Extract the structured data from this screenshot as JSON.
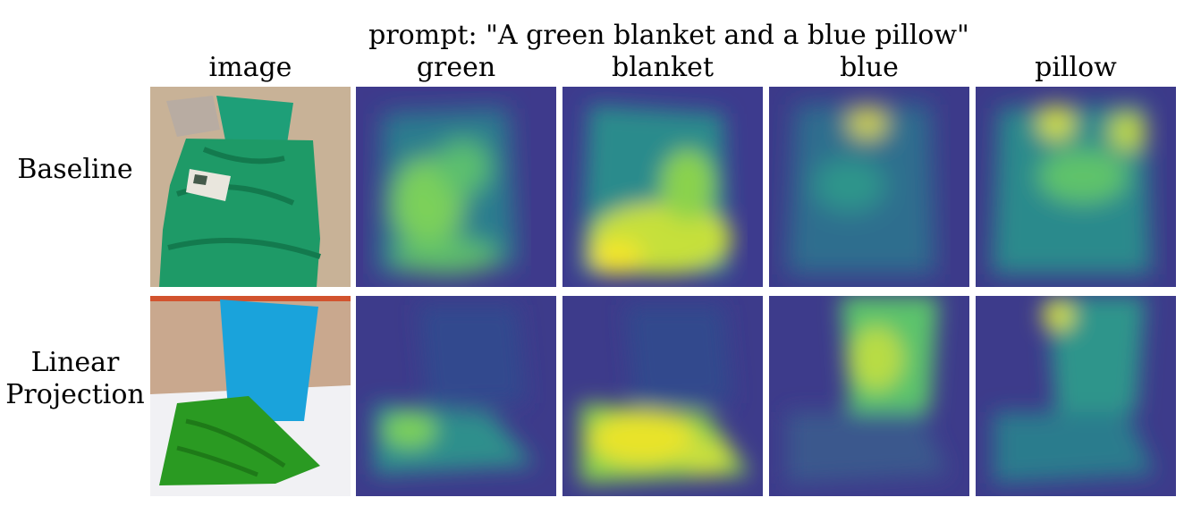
{
  "figure": {
    "prompt": "prompt: \"A green blanket and a blue pillow\"",
    "columns": [
      "image",
      "green",
      "blanket",
      "blue",
      "pillow"
    ],
    "rows": [
      {
        "label": "Baseline"
      },
      {
        "label_lines": [
          "Linear",
          "Projection"
        ]
      }
    ]
  },
  "colors": {
    "viridis_low": "#3b2f8c",
    "viridis_mid": "#21918c",
    "viridis_high": "#fde725",
    "blanket_green": "#1fa06a",
    "pillow_blue": "#1aa6de",
    "towel_green": "#2e9d2a"
  }
}
